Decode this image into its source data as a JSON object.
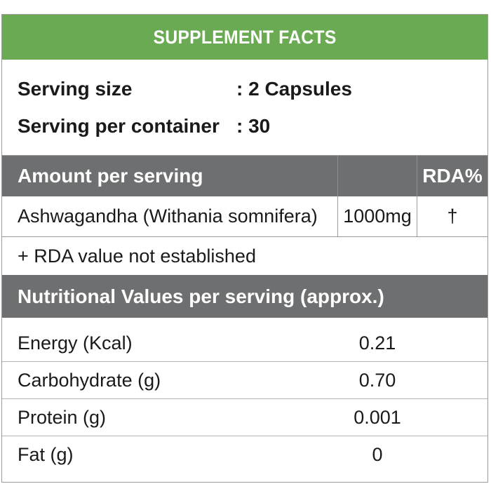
{
  "header": {
    "title": "SUPPLEMENT FACTS",
    "color": "#6aaa52"
  },
  "serving": {
    "size_label": "Serving size",
    "size_value": ": 2 Capsules",
    "per_container_label": "Serving per container",
    "per_container_value": ": 30"
  },
  "amount_table": {
    "header_label": "Amount per serving",
    "header_rda": "RDA%",
    "header_color": "#6d6f70",
    "rows": [
      {
        "name": "Ashwagandha (Withania somnifera)",
        "amount": "1000mg",
        "rda": "†"
      }
    ],
    "note": "+ RDA value not established"
  },
  "nutrition": {
    "header_label": "Nutritional Values per serving (approx.)",
    "rows": [
      {
        "name": "Energy (Kcal)",
        "value": "0.21"
      },
      {
        "name": "Carbohydrate (g)",
        "value": "0.70"
      },
      {
        "name": "Protein (g)",
        "value": "0.001"
      },
      {
        "name": "Fat (g)",
        "value": "0"
      }
    ]
  }
}
